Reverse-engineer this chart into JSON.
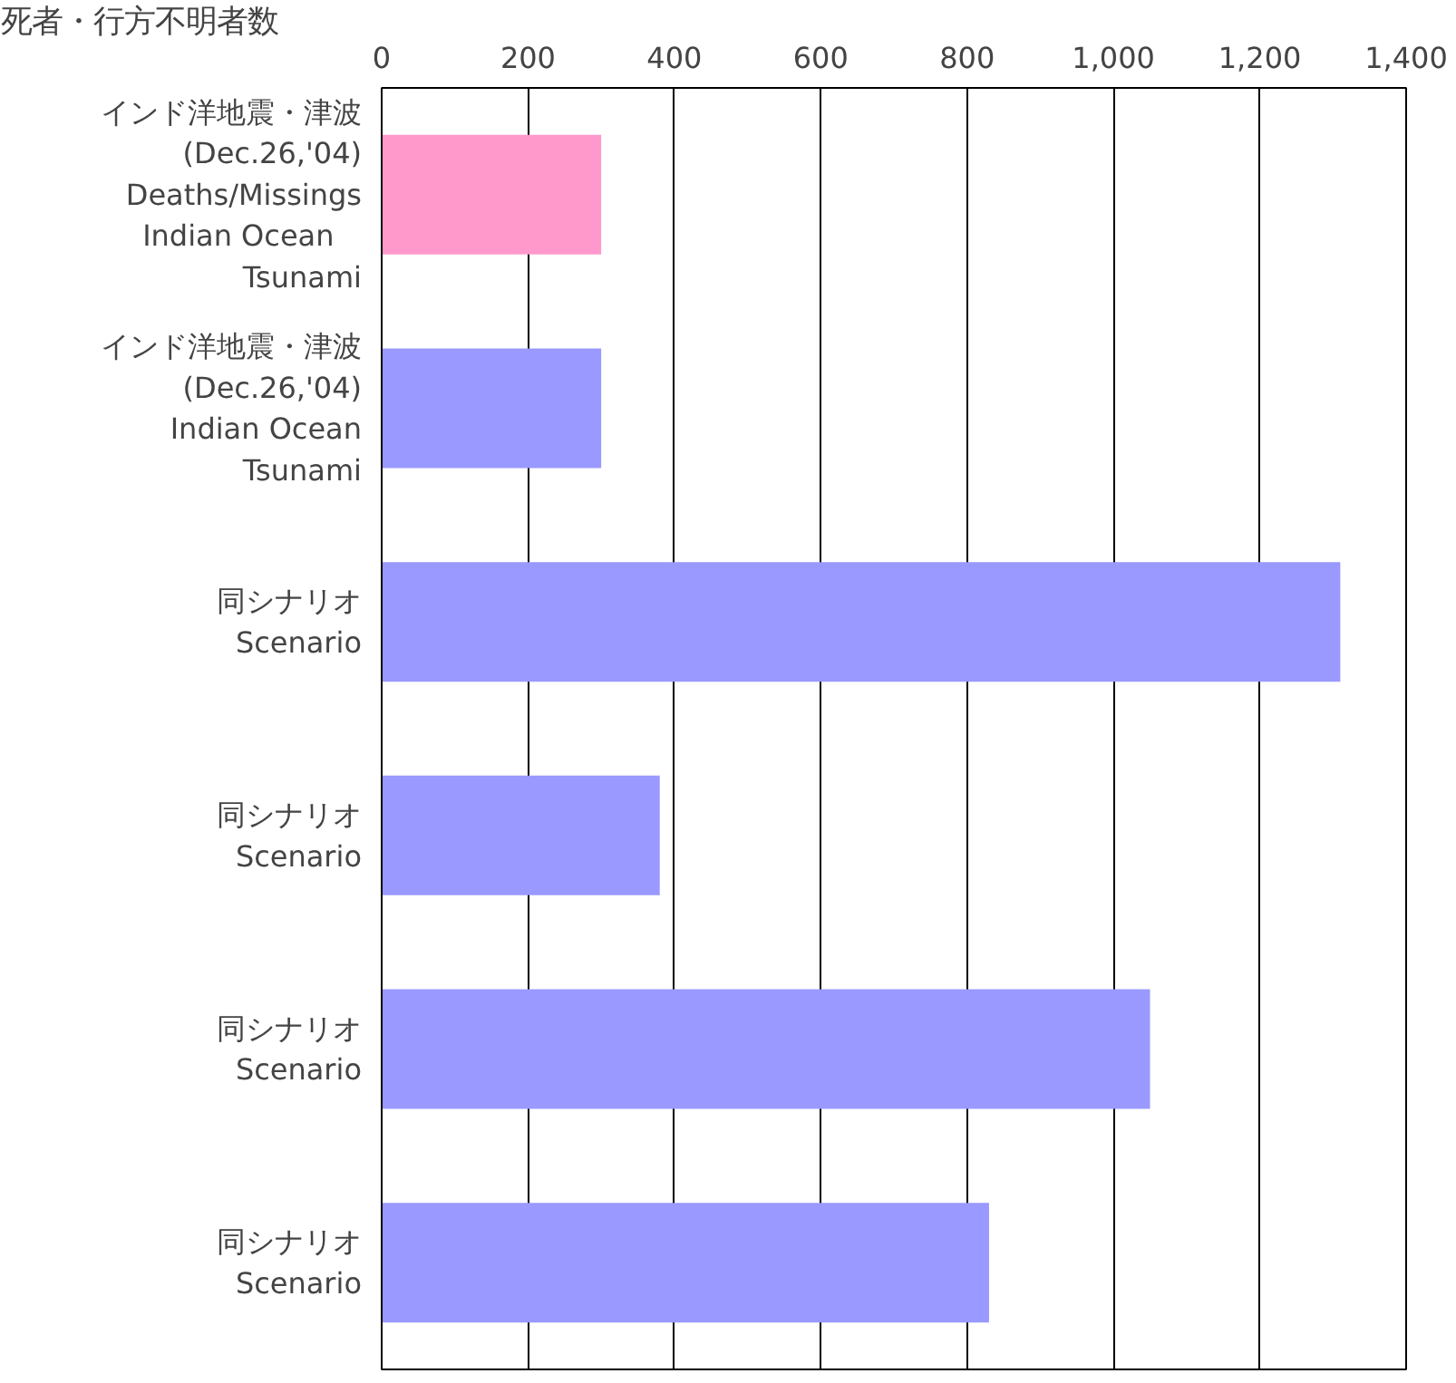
{
  "chart_data": {
    "type": "bar",
    "orientation": "horizontal",
    "title": "死者・行方不明者数",
    "categories": [
      "インド洋地震・津波\n(Dec.26,'04)\nDeaths/Missings\n   Indian Ocean\nTsunami",
      "インド洋地震・津波\n(Dec.26,'04)\nIndian Ocean\nTsunami",
      "同シナリオ\nScenario",
      "同シナリオ\nScenario",
      "同シナリオ\nScenario",
      "同シナリオ\nScenario"
    ],
    "values": [
      300,
      300,
      1310,
      380,
      1050,
      830
    ],
    "colors": [
      "#ff99cc",
      "#9999ff",
      "#9999ff",
      "#9999ff",
      "#9999ff",
      "#9999ff"
    ],
    "xlim": [
      0,
      1400
    ],
    "xticks": [
      0,
      200,
      400,
      600,
      800,
      {
        "value": 1000,
        "label": "1,000"
      },
      {
        "value": 1200,
        "label": "1,200"
      },
      {
        "value": 1400,
        "label": "1,400"
      }
    ],
    "grid": "x"
  }
}
